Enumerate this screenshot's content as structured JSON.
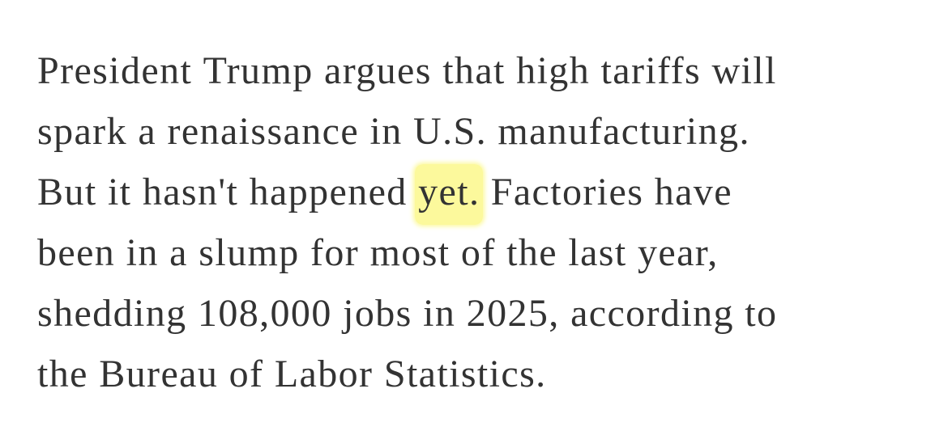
{
  "article": {
    "paragraph_lines": [
      "President Trump argues that high tariffs will",
      "spark a renaissance in U.S. manufacturing.",
      {
        "before": "But it hasn't happened ",
        "highlight": "yet.",
        "after": " Factories have"
      },
      "been in a slump for most of the last year,",
      "shedding 108,000 jobs in 2025, according to",
      "the Bureau of Labor Statistics."
    ],
    "highlight_color": "#fcf99c",
    "text_color": "#333333"
  }
}
